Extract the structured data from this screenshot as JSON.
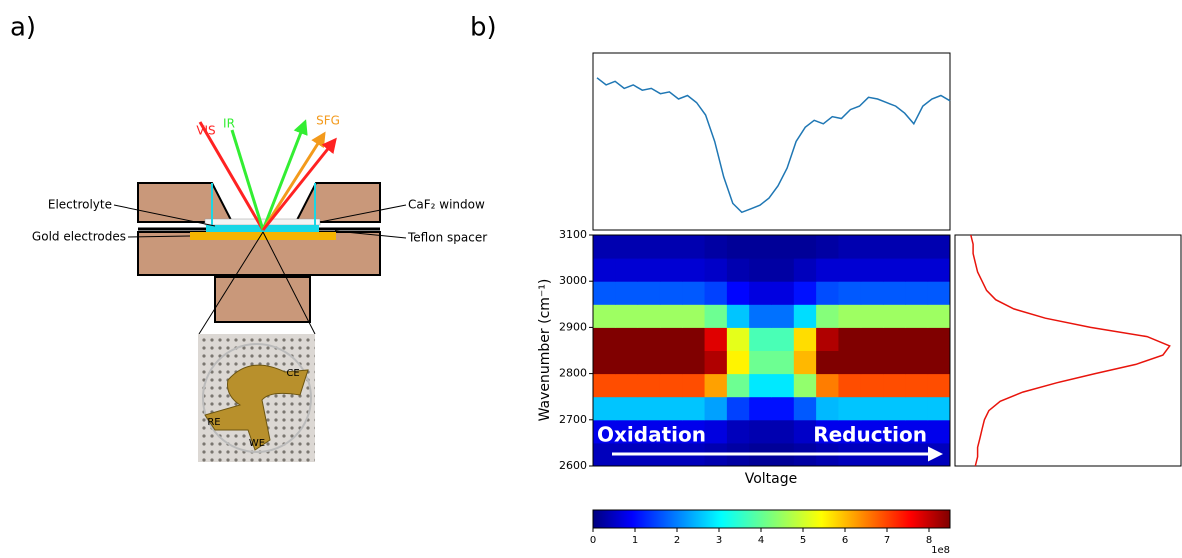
{
  "panel_labels": [
    "a)",
    "b)"
  ],
  "diagram": {
    "beams": [
      "VIS",
      "IR",
      "SFG"
    ],
    "labels": [
      "Electrolyte",
      "Gold electrodes",
      "CaF₂ window",
      "Teflon spacer"
    ],
    "photo_labels": [
      "CE",
      "RE",
      "WE"
    ]
  },
  "chart_data": [
    {
      "type": "heatmap",
      "ylabel": "Wavenumber (cm⁻¹)",
      "xlabel": "Voltage",
      "annotations": [
        "Oxidation",
        "Reduction"
      ],
      "ylim": [
        2600,
        3100
      ],
      "yticks": [
        2600,
        2700,
        2800,
        2900,
        3000,
        3100
      ],
      "y": [
        2625,
        2675,
        2725,
        2775,
        2825,
        2875,
        2925,
        2975,
        3025,
        3075
      ],
      "colormap": "jet",
      "clim": [
        0,
        8.5
      ],
      "cticks": [
        0,
        1,
        2,
        3,
        4,
        5,
        6,
        7,
        8
      ],
      "offset_label": "1e8",
      "z": [
        [
          0.5,
          0.5,
          0.5,
          0.5,
          0.5,
          0.4,
          0.3,
          0.2,
          0.2,
          0.3,
          0.4,
          0.5,
          0.5,
          0.5,
          0.5,
          0.5
        ],
        [
          0.9,
          0.9,
          0.9,
          0.9,
          0.9,
          0.8,
          0.5,
          0.4,
          0.4,
          0.6,
          0.9,
          0.9,
          0.9,
          0.9,
          0.9,
          0.9
        ],
        [
          2.7,
          2.7,
          2.7,
          2.7,
          2.7,
          2.4,
          1.6,
          1.2,
          1.2,
          1.8,
          2.6,
          2.7,
          2.7,
          2.7,
          2.7,
          2.7
        ],
        [
          6.8,
          6.8,
          6.8,
          6.8,
          6.8,
          6.1,
          4.1,
          3.0,
          3.0,
          4.4,
          6.4,
          6.8,
          6.8,
          6.8,
          6.8,
          6.8
        ],
        [
          9.0,
          9.0,
          9.0,
          9.0,
          9.0,
          8.1,
          5.4,
          4.1,
          4.1,
          5.9,
          8.6,
          9.0,
          9.0,
          9.0,
          9.0,
          9.0
        ],
        [
          8.6,
          8.6,
          8.6,
          8.6,
          8.6,
          7.7,
          5.1,
          3.8,
          3.8,
          5.6,
          8.1,
          8.6,
          8.6,
          8.6,
          8.6,
          8.6
        ],
        [
          4.5,
          4.5,
          4.5,
          4.5,
          4.5,
          4.1,
          2.7,
          2.0,
          2.0,
          2.9,
          4.3,
          4.5,
          4.5,
          4.5,
          4.5,
          4.5
        ],
        [
          1.8,
          1.8,
          1.8,
          1.8,
          1.8,
          1.6,
          1.1,
          0.8,
          0.8,
          1.2,
          1.7,
          1.8,
          1.8,
          1.8,
          1.8,
          1.8
        ],
        [
          0.7,
          0.7,
          0.7,
          0.7,
          0.7,
          0.6,
          0.4,
          0.3,
          0.3,
          0.5,
          0.7,
          0.7,
          0.7,
          0.7,
          0.7,
          0.7
        ],
        [
          0.4,
          0.4,
          0.4,
          0.4,
          0.4,
          0.3,
          0.2,
          0.2,
          0.2,
          0.2,
          0.3,
          0.4,
          0.4,
          0.4,
          0.4,
          0.4
        ]
      ]
    },
    {
      "type": "line",
      "color": "#1f77b4",
      "ylim": [
        0,
        1
      ],
      "values": [
        0.86,
        0.82,
        0.84,
        0.8,
        0.82,
        0.79,
        0.8,
        0.77,
        0.78,
        0.74,
        0.76,
        0.72,
        0.65,
        0.5,
        0.3,
        0.15,
        0.1,
        0.12,
        0.14,
        0.18,
        0.25,
        0.35,
        0.5,
        0.58,
        0.62,
        0.6,
        0.64,
        0.63,
        0.68,
        0.7,
        0.75,
        0.74,
        0.72,
        0.7,
        0.66,
        0.6,
        0.7,
        0.74,
        0.76,
        0.73
      ]
    },
    {
      "type": "line",
      "orientation": "vertical",
      "color": "#e8140c",
      "ylim": [
        0,
        1
      ],
      "xlim": [
        2600,
        3100
      ],
      "x": [
        2600,
        2620,
        2640,
        2660,
        2680,
        2700,
        2720,
        2740,
        2760,
        2780,
        2800,
        2820,
        2840,
        2860,
        2880,
        2900,
        2920,
        2940,
        2960,
        2980,
        3000,
        3020,
        3040,
        3060,
        3080,
        3100
      ],
      "values": [
        0.09,
        0.1,
        0.1,
        0.11,
        0.12,
        0.13,
        0.15,
        0.2,
        0.3,
        0.45,
        0.62,
        0.8,
        0.92,
        0.95,
        0.85,
        0.6,
        0.4,
        0.26,
        0.18,
        0.14,
        0.12,
        0.1,
        0.09,
        0.08,
        0.08,
        0.07
      ]
    }
  ]
}
